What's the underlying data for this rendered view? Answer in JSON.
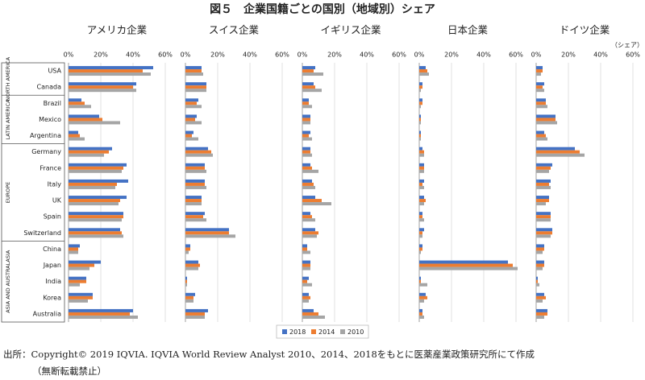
{
  "figure": {
    "title": "図５　企業国籍ごとの国別（地域別）シェア",
    "source": "出所：Copyright© 2019 IQVIA. IQVIA World Review Analyst 2010、2014、2018をもとに医薬産業政策研究所にて作成",
    "note": "（無断転載禁止）"
  },
  "regions": [
    {
      "label": "NORTH AMERICA",
      "count": 2
    },
    {
      "label": "LATIN AMERICA",
      "count": 3
    },
    {
      "label": "EUROPE",
      "count": 6
    },
    {
      "label": "ASIA AND AUSTRALASIA",
      "count": 5
    }
  ],
  "chart_data": [
    {
      "type": "bar",
      "orientation": "horizontal",
      "title": "アメリカ企業",
      "categories": [
        "USA",
        "Canada",
        "Brazil",
        "Mexico",
        "Argentina",
        "Germany",
        "France",
        "Italy",
        "UK",
        "Spain",
        "Switzerland",
        "China",
        "Japan",
        "India",
        "Korea",
        "Australia"
      ],
      "series": [
        {
          "name": "2018",
          "color": "#4472c4",
          "values": [
            52.5,
            42,
            8,
            19,
            6,
            27,
            36,
            37,
            36,
            34,
            32,
            7,
            20,
            11,
            15,
            40
          ]
        },
        {
          "name": "2014",
          "color": "#ed7d31",
          "values": [
            46,
            40,
            10,
            21,
            7,
            25,
            34,
            30,
            32,
            34,
            33,
            6,
            16,
            11,
            15,
            38
          ]
        },
        {
          "name": "2010",
          "color": "#a5a5a5",
          "values": [
            51,
            42,
            14,
            32,
            10,
            22,
            33,
            29,
            31,
            33,
            34,
            6,
            13,
            7,
            12,
            43
          ]
        }
      ],
      "xlim": [
        0,
        60
      ],
      "xticks": [
        {
          "value": 0,
          "label": "0%"
        },
        {
          "value": 20,
          "label": "20%"
        },
        {
          "value": 40,
          "label": "40%"
        },
        {
          "value": 60,
          "label": "60%"
        }
      ],
      "grid": true
    },
    {
      "type": "bar",
      "orientation": "horizontal",
      "title": "スイス企業",
      "series": [
        {
          "color": "#4472c4",
          "values": [
            10,
            13,
            8,
            7,
            5,
            14,
            12,
            12,
            10,
            12,
            27,
            3,
            8,
            1,
            6,
            14
          ]
        },
        {
          "color": "#ed7d31",
          "values": [
            10,
            13,
            7,
            6,
            4,
            16,
            12,
            12,
            10,
            11,
            27,
            3,
            9,
            1,
            5,
            12
          ]
        },
        {
          "color": "#a5a5a5",
          "values": [
            11,
            13,
            10,
            10,
            8,
            17,
            13,
            13,
            10,
            13,
            31,
            2,
            8,
            1,
            5,
            12
          ]
        }
      ],
      "xlim": [
        0,
        60
      ],
      "xticks": [
        {
          "value": 0,
          "label": "0%"
        },
        {
          "value": 20,
          "label": "20%"
        },
        {
          "value": 40,
          "label": "40%"
        },
        {
          "value": 60,
          "label": "60%"
        }
      ],
      "grid": true
    },
    {
      "type": "bar",
      "orientation": "horizontal",
      "title": "イギリス企業",
      "series": [
        {
          "color": "#4472c4",
          "values": [
            8,
            7,
            4,
            5,
            5,
            5,
            5,
            6,
            8,
            5,
            8,
            3,
            5,
            4,
            4,
            7
          ]
        },
        {
          "color": "#ed7d31",
          "values": [
            7,
            8,
            4,
            5,
            4,
            5,
            6,
            7,
            12,
            6,
            10,
            3,
            5,
            3,
            5,
            10
          ]
        },
        {
          "color": "#a5a5a5",
          "values": [
            13,
            12,
            6,
            5,
            6,
            6,
            10,
            8,
            18,
            8,
            9,
            5,
            5,
            6,
            4,
            14
          ]
        }
      ],
      "xlim": [
        0,
        60
      ],
      "xticks": [
        {
          "value": 0,
          "label": "0%"
        },
        {
          "value": 20,
          "label": "20%"
        },
        {
          "value": 40,
          "label": "40%"
        },
        {
          "value": 60,
          "label": "60%"
        }
      ],
      "grid": true
    },
    {
      "type": "bar",
      "orientation": "horizontal",
      "title": "日本企業",
      "series": [
        {
          "color": "#4472c4",
          "values": [
            4,
            2,
            2,
            1,
            1,
            2,
            3,
            3,
            3,
            2,
            3,
            2,
            55,
            1,
            4,
            2
          ]
        },
        {
          "color": "#ed7d31",
          "values": [
            5,
            2,
            2,
            1,
            1,
            3,
            3,
            2,
            4,
            2,
            2,
            2,
            58,
            1,
            5,
            2
          ]
        },
        {
          "color": "#a5a5a5",
          "values": [
            6,
            1,
            1,
            1,
            1,
            3,
            3,
            3,
            3,
            3,
            2,
            1,
            61,
            5,
            3,
            3
          ]
        }
      ],
      "xlim": [
        0,
        60
      ],
      "xticks": [
        {
          "value": 0,
          "label": "0%"
        },
        {
          "value": 20,
          "label": "20%"
        },
        {
          "value": 40,
          "label": "40%"
        },
        {
          "value": 60,
          "label": "60%"
        }
      ],
      "grid": true
    },
    {
      "type": "bar",
      "orientation": "horizontal",
      "title": "ドイツ企業",
      "unit": "（シェア）",
      "series": [
        {
          "color": "#4472c4",
          "values": [
            4,
            5,
            6,
            12,
            5,
            24,
            10,
            9,
            8,
            9,
            10,
            5,
            5,
            1,
            5,
            7
          ]
        },
        {
          "color": "#ed7d31",
          "values": [
            4,
            4,
            6,
            12,
            6,
            27,
            9,
            8,
            8,
            9,
            10,
            5,
            5,
            1,
            6,
            7
          ]
        },
        {
          "color": "#a5a5a5",
          "values": [
            3,
            5,
            7,
            13,
            7,
            30,
            8,
            9,
            6,
            9,
            9,
            4,
            4,
            2,
            4,
            5
          ]
        }
      ],
      "xlim": [
        0,
        60
      ],
      "xticks": [
        {
          "value": 0,
          "label": "0%"
        },
        {
          "value": 20,
          "label": "20%"
        },
        {
          "value": 40,
          "label": "40%"
        },
        {
          "value": 60,
          "label": "60%"
        }
      ],
      "grid": true
    }
  ]
}
